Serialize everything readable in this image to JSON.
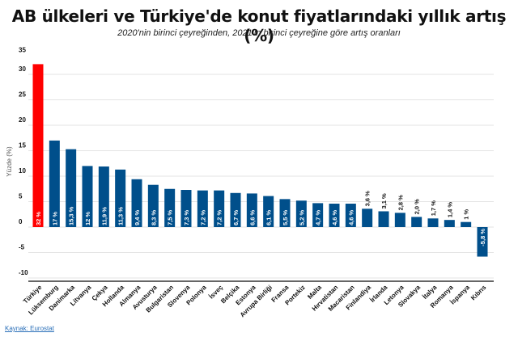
{
  "header": {
    "title": "AB ülkeleri ve Türkiye'de konut fiyatlarındaki yıllık artış (%)",
    "subtitle": "2020'nin birinci çeyreğinden, 2021'in birinci çeyreğine göre artış oranları"
  },
  "footer": {
    "source": "Kaynak: Eurostat"
  },
  "colors": {
    "highlight": "#ff0000",
    "bar": "#004f8b",
    "grid": "#e3e3e3",
    "axis": "#333333"
  },
  "chart_data": {
    "type": "bar",
    "title": "AB ülkeleri ve Türkiye'de konut fiyatlarındaki yıllık artış (%)",
    "subtitle": "2020'nin birinci çeyreğinden, 2021'in birinci çeyreğine göre artış oranları",
    "xlabel": "",
    "ylabel": "Yüzde (%)",
    "ylim": [
      -10,
      35
    ],
    "yticks": [
      35,
      30,
      25,
      20,
      15,
      10,
      5,
      0,
      -5,
      -10
    ],
    "grid": true,
    "legend": null,
    "categories": [
      "Türkiye",
      "Lüksemburg",
      "Danimarka",
      "Litvanya",
      "Çekya",
      "Hollanda",
      "Almanya",
      "Avusturya",
      "Bulgaristan",
      "Slovenya",
      "Polonya",
      "İsveç",
      "Belçika",
      "Estonya",
      "Avrupa Birliği",
      "Fransa",
      "Portekiz",
      "Malta",
      "Hırvatistan",
      "Macaristan",
      "Finlandiya",
      "İrlanda",
      "Letonya",
      "Slovakya",
      "İtalya",
      "Romanya",
      "İspanya",
      "Kıbrıs"
    ],
    "values": [
      32,
      17,
      15.3,
      12,
      11.9,
      11.3,
      9.4,
      8.3,
      7.5,
      7.3,
      7.2,
      7.2,
      6.7,
      6.6,
      6.1,
      5.5,
      5.2,
      4.7,
      4.6,
      4.6,
      3.6,
      3.1,
      2.8,
      2.0,
      1.7,
      1.4,
      1,
      -5.8
    ],
    "labels": [
      "32 %",
      "17 %",
      "15,3 %",
      "12 %",
      "11,9 %",
      "11,3 %",
      "9,4 %",
      "8,3 %",
      "7,5 %",
      "7,3 %",
      "7,2 %",
      "7,2 %",
      "6,7 %",
      "6,6 %",
      "6,1 %",
      "5,5 %",
      "5,2 %",
      "4,7 %",
      "4,6 %",
      "4,6 %",
      "3,6 %",
      "3,1 %",
      "2,8 %",
      "2,0 %",
      "1,7 %",
      "1,4 %",
      "1 %",
      "-5,8 %"
    ],
    "highlight_index": 0,
    "source": "Kaynak: Eurostat"
  }
}
